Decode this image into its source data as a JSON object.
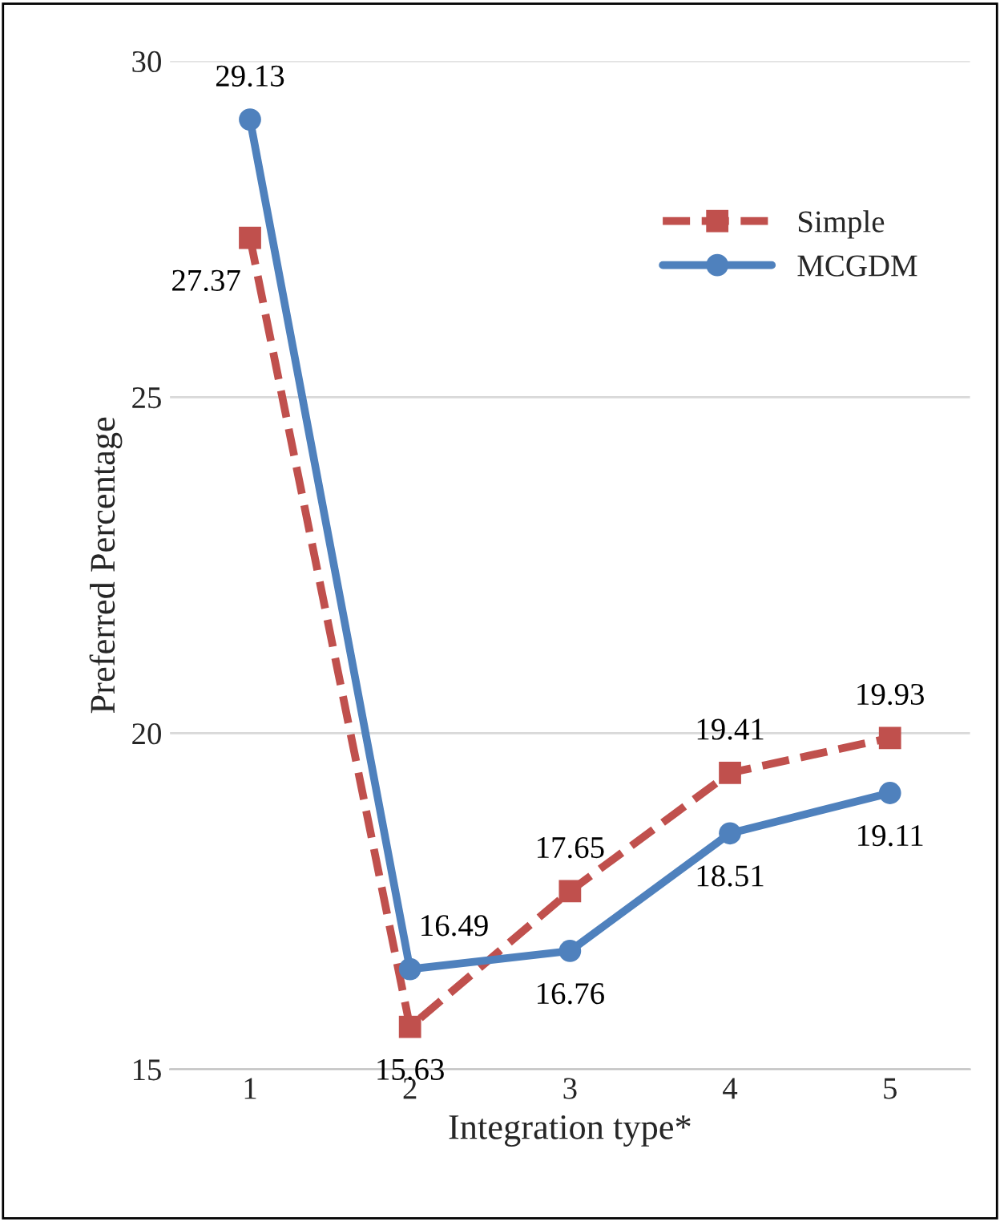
{
  "chart_data": {
    "type": "line",
    "xlabel": "Integration type*",
    "ylabel": "Preferred Percentage",
    "categories": [
      "1",
      "2",
      "3",
      "4",
      "5"
    ],
    "series": [
      {
        "name": "Simple",
        "color": "#c0504d",
        "marker": "square",
        "line_style": "dashed",
        "values": [
          27.37,
          15.63,
          17.65,
          19.41,
          19.93
        ]
      },
      {
        "name": "MCGDM",
        "color": "#4f81bd",
        "marker": "circle",
        "line_style": "solid",
        "values": [
          29.13,
          16.49,
          16.76,
          18.51,
          19.11
        ]
      }
    ],
    "ylim": [
      15,
      30
    ],
    "yticks": [
      15,
      20,
      25,
      30
    ],
    "grid": "y",
    "legend": "top right",
    "data_labels": true
  }
}
